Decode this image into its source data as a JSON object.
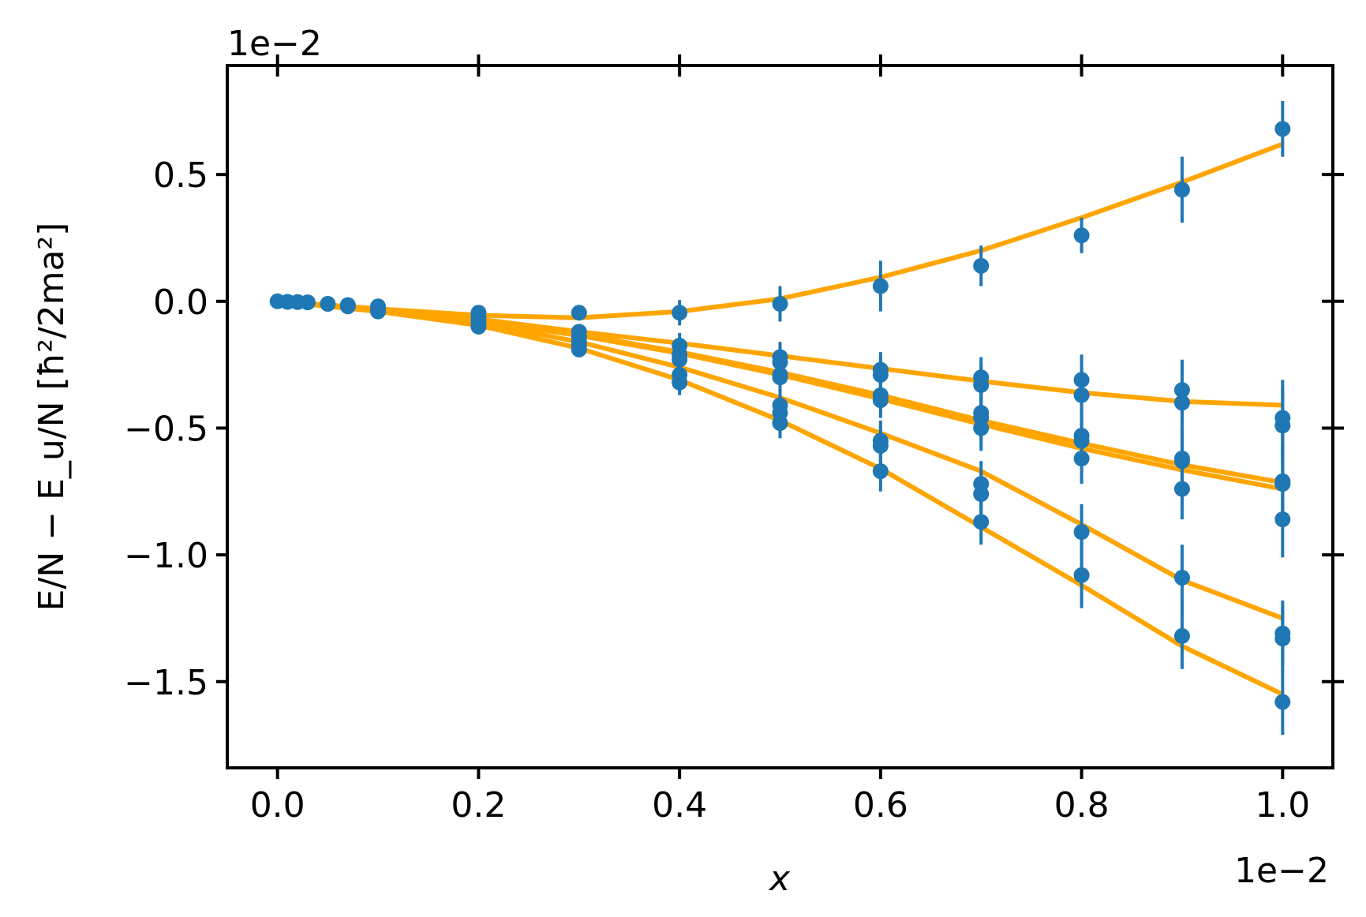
{
  "chart_data": {
    "type": "scatter",
    "title": "",
    "xlabel": "x",
    "ylabel": "E/N − E_u/N   [ħ²/2ma²]",
    "x_offset_text": "1e−2",
    "y_offset_text": "1e−2",
    "xlim": [
      -0.05,
      1.05
    ],
    "ylim": [
      -1.84,
      0.93
    ],
    "xticks": [
      0.0,
      0.2,
      0.4,
      0.6,
      0.8,
      1.0
    ],
    "xtick_labels": [
      "0.0",
      "0.2",
      "0.4",
      "0.6",
      "0.8",
      "1.0"
    ],
    "yticks": [
      0.5,
      0.0,
      -0.5,
      -1.0,
      -1.5
    ],
    "ytick_labels": [
      "0.5",
      "0.0",
      "−0.5",
      "−1.0",
      "−1.5"
    ],
    "grid": false,
    "fit_color": "#FFA500",
    "marker_color": "#1F77B4",
    "fit_curves": [
      {
        "x": [
          0,
          0.1,
          0.2,
          0.3,
          0.4,
          0.5,
          0.6,
          0.7,
          0.8,
          0.9,
          1.0
        ],
        "y": [
          0,
          -0.03,
          -0.055,
          -0.065,
          -0.04,
          0.01,
          0.095,
          0.2,
          0.33,
          0.47,
          0.62
        ]
      },
      {
        "x": [
          0,
          0.1,
          0.2,
          0.3,
          0.4,
          0.5,
          0.6,
          0.7,
          0.8,
          0.9,
          1.0
        ],
        "y": [
          0,
          -0.03,
          -0.07,
          -0.12,
          -0.165,
          -0.215,
          -0.265,
          -0.315,
          -0.36,
          -0.395,
          -0.41
        ]
      },
      {
        "x": [
          0,
          0.1,
          0.2,
          0.3,
          0.4,
          0.5,
          0.6,
          0.7,
          0.8,
          0.9,
          1.0
        ],
        "y": [
          0,
          -0.03,
          -0.075,
          -0.13,
          -0.2,
          -0.28,
          -0.37,
          -0.47,
          -0.56,
          -0.645,
          -0.715
        ]
      },
      {
        "x": [
          0,
          0.1,
          0.2,
          0.3,
          0.4,
          0.5,
          0.6,
          0.7,
          0.8,
          0.9,
          1.0
        ],
        "y": [
          0,
          -0.03,
          -0.077,
          -0.135,
          -0.205,
          -0.29,
          -0.385,
          -0.485,
          -0.58,
          -0.665,
          -0.74
        ]
      },
      {
        "x": [
          0,
          0.1,
          0.2,
          0.3,
          0.4,
          0.5,
          0.6,
          0.7,
          0.8,
          0.9,
          1.0
        ],
        "y": [
          0,
          -0.035,
          -0.085,
          -0.16,
          -0.26,
          -0.38,
          -0.52,
          -0.67,
          -0.88,
          -1.1,
          -1.25
        ]
      },
      {
        "x": [
          0,
          0.1,
          0.2,
          0.3,
          0.4,
          0.5,
          0.6,
          0.7,
          0.8,
          0.9,
          1.0
        ],
        "y": [
          0,
          -0.04,
          -0.095,
          -0.185,
          -0.31,
          -0.47,
          -0.66,
          -0.89,
          -1.12,
          -1.36,
          -1.55
        ]
      }
    ],
    "points": [
      {
        "x": 0.0,
        "y": 0.0,
        "err": 0.005
      },
      {
        "x": 0.01,
        "y": -0.002,
        "err": 0.005
      },
      {
        "x": 0.02,
        "y": -0.003,
        "err": 0.005
      },
      {
        "x": 0.03,
        "y": -0.004,
        "err": 0.005
      },
      {
        "x": 0.05,
        "y": -0.01,
        "err": 0.008
      },
      {
        "x": 0.07,
        "y": -0.015,
        "err": 0.008
      },
      {
        "x": 0.07,
        "y": -0.02,
        "err": 0.008
      },
      {
        "x": 0.1,
        "y": -0.02,
        "err": 0.01
      },
      {
        "x": 0.1,
        "y": -0.03,
        "err": 0.01
      },
      {
        "x": 0.1,
        "y": -0.04,
        "err": 0.01
      },
      {
        "x": 0.2,
        "y": -0.045,
        "err": 0.015
      },
      {
        "x": 0.2,
        "y": -0.06,
        "err": 0.015
      },
      {
        "x": 0.2,
        "y": -0.075,
        "err": 0.015
      },
      {
        "x": 0.2,
        "y": -0.09,
        "err": 0.015
      },
      {
        "x": 0.2,
        "y": -0.1,
        "err": 0.015
      },
      {
        "x": 0.3,
        "y": -0.045,
        "err": 0.02
      },
      {
        "x": 0.3,
        "y": -0.12,
        "err": 0.025
      },
      {
        "x": 0.3,
        "y": -0.14,
        "err": 0.025
      },
      {
        "x": 0.3,
        "y": -0.16,
        "err": 0.025
      },
      {
        "x": 0.3,
        "y": -0.175,
        "err": 0.025
      },
      {
        "x": 0.3,
        "y": -0.19,
        "err": 0.025
      },
      {
        "x": 0.4,
        "y": -0.045,
        "err": 0.05
      },
      {
        "x": 0.4,
        "y": -0.175,
        "err": 0.05
      },
      {
        "x": 0.4,
        "y": -0.21,
        "err": 0.05
      },
      {
        "x": 0.4,
        "y": -0.23,
        "err": 0.05
      },
      {
        "x": 0.4,
        "y": -0.29,
        "err": 0.05
      },
      {
        "x": 0.4,
        "y": -0.32,
        "err": 0.05
      },
      {
        "x": 0.5,
        "y": -0.01,
        "err": 0.07
      },
      {
        "x": 0.5,
        "y": -0.22,
        "err": 0.06
      },
      {
        "x": 0.5,
        "y": -0.24,
        "err": 0.06
      },
      {
        "x": 0.5,
        "y": -0.29,
        "err": 0.06
      },
      {
        "x": 0.5,
        "y": -0.3,
        "err": 0.06
      },
      {
        "x": 0.5,
        "y": -0.41,
        "err": 0.06
      },
      {
        "x": 0.5,
        "y": -0.44,
        "err": 0.06
      },
      {
        "x": 0.5,
        "y": -0.48,
        "err": 0.06
      },
      {
        "x": 0.6,
        "y": 0.06,
        "err": 0.1
      },
      {
        "x": 0.6,
        "y": -0.27,
        "err": 0.07
      },
      {
        "x": 0.6,
        "y": -0.29,
        "err": 0.07
      },
      {
        "x": 0.6,
        "y": -0.37,
        "err": 0.07
      },
      {
        "x": 0.6,
        "y": -0.39,
        "err": 0.07
      },
      {
        "x": 0.6,
        "y": -0.55,
        "err": 0.08
      },
      {
        "x": 0.6,
        "y": -0.57,
        "err": 0.08
      },
      {
        "x": 0.6,
        "y": -0.67,
        "err": 0.08
      },
      {
        "x": 0.7,
        "y": 0.14,
        "err": 0.08
      },
      {
        "x": 0.7,
        "y": -0.3,
        "err": 0.08
      },
      {
        "x": 0.7,
        "y": -0.33,
        "err": 0.08
      },
      {
        "x": 0.7,
        "y": -0.44,
        "err": 0.09
      },
      {
        "x": 0.7,
        "y": -0.46,
        "err": 0.09
      },
      {
        "x": 0.7,
        "y": -0.5,
        "err": 0.09
      },
      {
        "x": 0.7,
        "y": -0.72,
        "err": 0.09
      },
      {
        "x": 0.7,
        "y": -0.76,
        "err": 0.09
      },
      {
        "x": 0.7,
        "y": -0.87,
        "err": 0.09
      },
      {
        "x": 0.8,
        "y": 0.26,
        "err": 0.07
      },
      {
        "x": 0.8,
        "y": -0.31,
        "err": 0.1
      },
      {
        "x": 0.8,
        "y": -0.37,
        "err": 0.1
      },
      {
        "x": 0.8,
        "y": -0.53,
        "err": 0.1
      },
      {
        "x": 0.8,
        "y": -0.55,
        "err": 0.1
      },
      {
        "x": 0.8,
        "y": -0.62,
        "err": 0.1
      },
      {
        "x": 0.8,
        "y": -0.91,
        "err": 0.11
      },
      {
        "x": 0.8,
        "y": -1.08,
        "err": 0.13
      },
      {
        "x": 0.9,
        "y": 0.44,
        "err": 0.13
      },
      {
        "x": 0.9,
        "y": -0.35,
        "err": 0.12
      },
      {
        "x": 0.9,
        "y": -0.4,
        "err": 0.12
      },
      {
        "x": 0.9,
        "y": -0.62,
        "err": 0.12
      },
      {
        "x": 0.9,
        "y": -0.63,
        "err": 0.12
      },
      {
        "x": 0.9,
        "y": -0.74,
        "err": 0.12
      },
      {
        "x": 0.9,
        "y": -1.09,
        "err": 0.13
      },
      {
        "x": 0.9,
        "y": -1.32,
        "err": 0.13
      },
      {
        "x": 1.0,
        "y": 0.68,
        "err": 0.11
      },
      {
        "x": 1.0,
        "y": -0.46,
        "err": 0.15
      },
      {
        "x": 1.0,
        "y": -0.49,
        "err": 0.15
      },
      {
        "x": 1.0,
        "y": -0.71,
        "err": 0.15
      },
      {
        "x": 1.0,
        "y": -0.72,
        "err": 0.15
      },
      {
        "x": 1.0,
        "y": -0.86,
        "err": 0.15
      },
      {
        "x": 1.0,
        "y": -1.31,
        "err": 0.13
      },
      {
        "x": 1.0,
        "y": -1.33,
        "err": 0.13
      },
      {
        "x": 1.0,
        "y": -1.58,
        "err": 0.13
      }
    ]
  }
}
